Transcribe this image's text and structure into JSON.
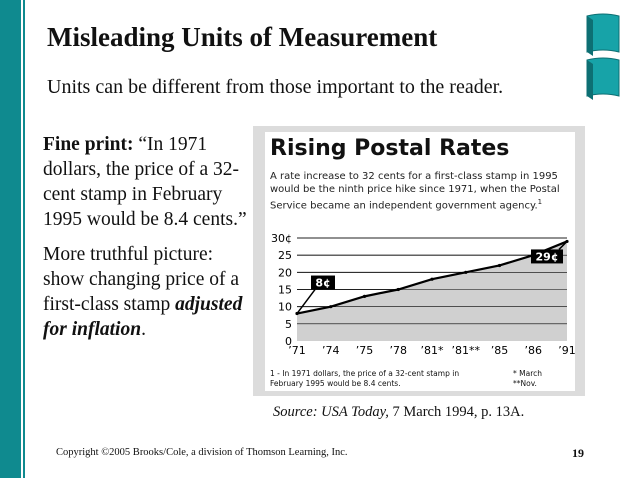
{
  "slide": {
    "title": "Misleading Units of Measurement",
    "subtitle": "Units can be different from those important to the reader.",
    "fine_print_label": "Fine print:",
    "fine_print_text": " “In 1971 dollars, the price of a 32-cent stamp in February 1995 would be 8.4 cents.”",
    "truthful_text": "More truthful picture: show changing price of a first-class stamp ",
    "truthful_emphasis": "adjusted for inflation",
    "truthful_end": ".",
    "source_label": "Source: USA Today,",
    "source_text": " 7 March 1994, p. 13A.",
    "copyright": "Copyright ©2005 Brooks/Cole, a division of Thomson Learning, Inc.",
    "page_number": "19"
  },
  "figure": {
    "title": "Rising Postal Rates",
    "description": "A rate increase to 32 cents for a first-class stamp in 1995 would be the ninth price hike since 1971, when the Postal Service became an independent government agency.",
    "description_sup": "1",
    "footnote_left": "1 - In 1971 dollars, the price of a 32-cent stamp in February 1995 would be 8.4 cents.",
    "footnote_right_1": "*   March",
    "footnote_right_2": "**Nov."
  },
  "chart_data": {
    "type": "area",
    "categories": [
      "’71",
      "’74",
      "’75",
      "’78",
      "’81*",
      "’81**",
      "’85",
      "’86",
      "’91"
    ],
    "values": [
      8,
      10,
      13,
      15,
      18,
      20,
      22,
      25,
      29
    ],
    "y_ticks": [
      "0",
      "5",
      "10",
      "15",
      "20",
      "25",
      "30¢"
    ],
    "ylim": [
      0,
      30
    ],
    "grid": true,
    "callouts": [
      {
        "label": "8¢",
        "category_index": 0
      },
      {
        "label": "29¢",
        "category_index": 8
      }
    ],
    "fill_color": "#d0d0d0",
    "line_color": "#000000"
  }
}
